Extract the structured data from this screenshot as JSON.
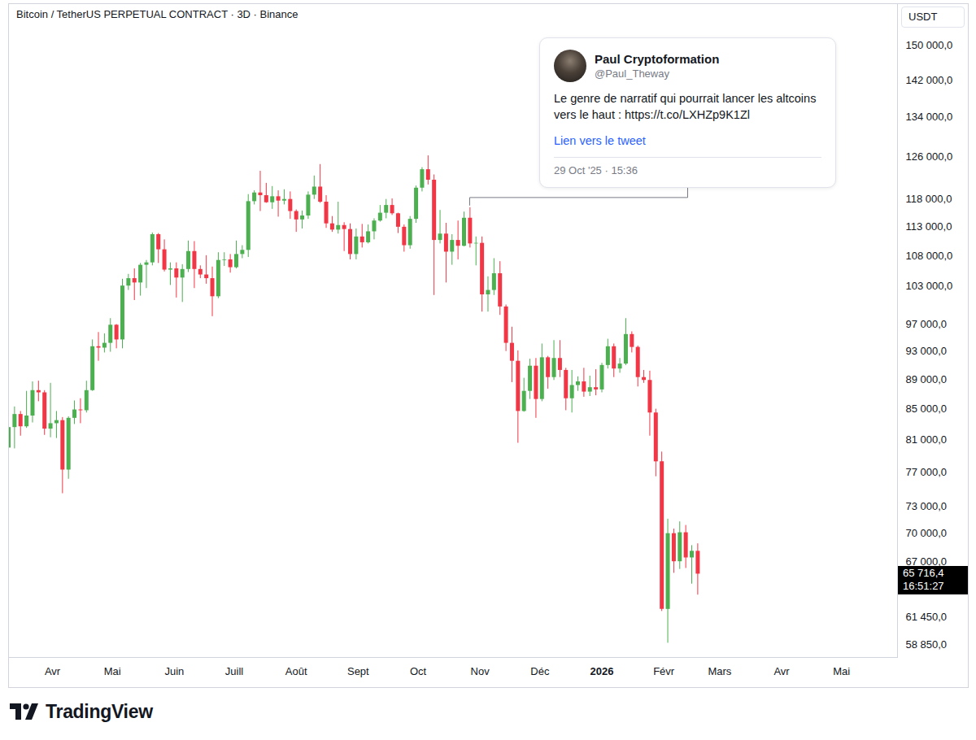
{
  "chart_data": {
    "type": "candlestick",
    "title": "Bitcoin / TetherUS PERPETUAL CONTRACT · 3D · Binance",
    "ylabel": "USDT",
    "log": "y",
    "grid": false,
    "x": [
      "2025-03-10",
      "2025-03-13",
      "2025-03-16",
      "2025-03-19",
      "2025-03-22",
      "2025-03-25",
      "2025-03-28",
      "2025-03-31",
      "2025-04-03",
      "2025-04-06",
      "2025-04-09",
      "2025-04-12",
      "2025-04-15",
      "2025-04-18",
      "2025-04-21",
      "2025-04-24",
      "2025-04-27",
      "2025-04-30",
      "2025-05-03",
      "2025-05-06",
      "2025-05-09",
      "2025-05-12",
      "2025-05-15",
      "2025-05-18",
      "2025-05-21",
      "2025-05-24",
      "2025-05-27",
      "2025-05-30",
      "2025-06-02",
      "2025-06-05",
      "2025-06-08",
      "2025-06-11",
      "2025-06-14",
      "2025-06-17",
      "2025-06-20",
      "2025-06-23",
      "2025-06-26",
      "2025-06-29",
      "2025-07-02",
      "2025-07-05",
      "2025-07-08",
      "2025-07-11",
      "2025-07-14",
      "2025-07-17",
      "2025-07-20",
      "2025-07-23",
      "2025-07-26",
      "2025-07-29",
      "2025-08-01",
      "2025-08-04",
      "2025-08-07",
      "2025-08-10",
      "2025-08-13",
      "2025-08-16",
      "2025-08-19",
      "2025-08-22",
      "2025-08-25",
      "2025-08-28",
      "2025-08-31",
      "2025-09-03",
      "2025-09-06",
      "2025-09-09",
      "2025-09-12",
      "2025-09-15",
      "2025-09-18",
      "2025-09-21",
      "2025-09-24",
      "2025-09-27",
      "2025-09-30",
      "2025-10-03",
      "2025-10-06",
      "2025-10-09",
      "2025-10-12",
      "2025-10-15",
      "2025-10-18",
      "2025-10-21",
      "2025-10-24",
      "2025-10-27",
      "2025-10-30",
      "2025-11-02",
      "2025-11-05",
      "2025-11-08",
      "2025-11-11",
      "2025-11-14",
      "2025-11-17",
      "2025-11-20",
      "2025-11-23",
      "2025-11-26",
      "2025-11-29",
      "2025-12-02",
      "2025-12-05",
      "2025-12-08",
      "2025-12-11",
      "2025-12-14",
      "2025-12-17",
      "2025-12-20",
      "2025-12-23",
      "2025-12-26",
      "2025-12-29",
      "2026-01-01",
      "2026-01-04",
      "2026-01-07",
      "2026-01-10",
      "2026-01-13",
      "2026-01-16",
      "2026-01-19",
      "2026-01-22",
      "2026-01-25",
      "2026-01-28",
      "2026-01-31",
      "2026-02-03",
      "2026-02-06",
      "2026-02-09",
      "2026-02-12",
      "2026-02-15",
      "2026-02-18"
    ],
    "open": [
      80000,
      82600,
      84300,
      82700,
      84100,
      87500,
      87200,
      82400,
      83100,
      83500,
      77300,
      83800,
      84900,
      84800,
      87500,
      93700,
      93500,
      94200,
      96900,
      94700,
      103000,
      104200,
      103500,
      106400,
      106800,
      111600,
      109000,
      105600,
      105800,
      104300,
      105700,
      108700,
      105700,
      104800,
      104200,
      101300,
      107200,
      107300,
      106000,
      108200,
      108900,
      117500,
      119100,
      118600,
      117300,
      118400,
      117600,
      117900,
      115700,
      114200,
      114900,
      118700,
      120200,
      117400,
      113500,
      112400,
      113200,
      112500,
      108200,
      111200,
      110200,
      112100,
      114000,
      115400,
      116800,
      115300,
      112900,
      109700,
      114300,
      120000,
      123500,
      121500,
      110600,
      111700,
      108600,
      110600,
      109600,
      114500,
      110000,
      110100,
      101600,
      102300,
      105000,
      99700,
      94200,
      91600,
      84700,
      87400,
      90900,
      86300,
      92100,
      89300,
      92000,
      90300,
      86400,
      88200,
      88700,
      87300,
      87900,
      87600,
      91000,
      93700,
      90500,
      91200,
      95500,
      93600,
      89300,
      88900,
      84500,
      78300,
      62200,
      70000,
      67000,
      70100,
      67400,
      68100
    ],
    "high": [
      84000,
      85300,
      84700,
      87400,
      88700,
      88800,
      87500,
      88500,
      84700,
      83900,
      84000,
      86100,
      86400,
      88800,
      94700,
      95800,
      95600,
      97900,
      97000,
      104100,
      104900,
      105800,
      106700,
      107200,
      111900,
      111800,
      110700,
      106800,
      106800,
      106500,
      110500,
      110400,
      106300,
      108000,
      106100,
      108500,
      108500,
      108200,
      110500,
      109700,
      118800,
      119500,
      123200,
      120900,
      120300,
      119500,
      119700,
      119300,
      116000,
      115800,
      119300,
      122300,
      124500,
      118600,
      114800,
      117400,
      113700,
      113500,
      112600,
      113400,
      113300,
      114400,
      116800,
      117900,
      118000,
      115400,
      113300,
      114800,
      120400,
      123900,
      126200,
      122500,
      115900,
      113600,
      111600,
      114000,
      115600,
      116400,
      111200,
      111200,
      104500,
      107500,
      107000,
      100000,
      96600,
      93100,
      89200,
      91900,
      92000,
      94100,
      92300,
      94600,
      94600,
      90600,
      90300,
      89400,
      90600,
      89500,
      90400,
      91300,
      94800,
      94100,
      92000,
      97900,
      95900,
      93800,
      90300,
      90200,
      85000,
      79500,
      71600,
      70500,
      71300,
      70900,
      68700,
      68900
    ],
    "low": [
      76600,
      79900,
      81500,
      82500,
      83200,
      86000,
      81600,
      81300,
      81200,
      74500,
      76200,
      83000,
      83100,
      84500,
      87400,
      91600,
      92800,
      92900,
      93400,
      93400,
      102300,
      100700,
      101400,
      102600,
      106300,
      106700,
      105300,
      103100,
      101100,
      100400,
      105200,
      102600,
      104200,
      103300,
      98200,
      101000,
      106200,
      105100,
      105800,
      107500,
      107700,
      116900,
      115700,
      117200,
      116100,
      114700,
      116900,
      114300,
      112000,
      112600,
      114300,
      117900,
      117200,
      112700,
      112000,
      111700,
      108700,
      107300,
      107300,
      109300,
      110000,
      110700,
      113800,
      114400,
      115000,
      111800,
      108600,
      109100,
      113600,
      119300,
      120600,
      101500,
      110000,
      103500,
      106400,
      107300,
      109500,
      109300,
      106300,
      98900,
      98900,
      101500,
      98400,
      93000,
      88600,
      80600,
      84600,
      86300,
      83800,
      86000,
      87700,
      88900,
      89300,
      84800,
      84500,
      87400,
      86600,
      86700,
      86800,
      87200,
      90500,
      89300,
      89900,
      91000,
      92800,
      88000,
      88500,
      81500,
      76500,
      62000,
      59000,
      65800,
      66200,
      66300,
      64700,
      63600
    ],
    "close": [
      82600,
      84300,
      82700,
      84100,
      87500,
      87200,
      82400,
      83100,
      83500,
      77300,
      83800,
      84900,
      84800,
      87500,
      93700,
      93500,
      94200,
      96900,
      94700,
      103000,
      104200,
      103500,
      106400,
      106800,
      111600,
      109000,
      105600,
      105800,
      104300,
      105700,
      108700,
      105700,
      104800,
      104200,
      101300,
      107200,
      107300,
      106000,
      108200,
      108900,
      117500,
      119100,
      118600,
      117300,
      118400,
      117600,
      117900,
      115700,
      114200,
      114900,
      118700,
      120200,
      117400,
      113500,
      112400,
      113200,
      112500,
      108200,
      111200,
      110200,
      112100,
      114000,
      115400,
      116800,
      115300,
      112900,
      109700,
      114300,
      120000,
      123500,
      121500,
      110600,
      111700,
      108600,
      110600,
      109600,
      114500,
      110000,
      110100,
      101600,
      102300,
      105000,
      99700,
      94200,
      91600,
      84700,
      87400,
      90900,
      86300,
      92100,
      89300,
      92000,
      90300,
      86400,
      88200,
      88700,
      87300,
      87900,
      87600,
      91000,
      93700,
      90500,
      91200,
      95500,
      93600,
      89300,
      88900,
      84500,
      78300,
      62200,
      70000,
      67000,
      70100,
      67400,
      68100,
      65716.4
    ],
    "colors": [
      "#4caf50",
      "#4caf50",
      "#f23645",
      "#4caf50",
      "#4caf50",
      "#f23645",
      "#f23645",
      "#4caf50",
      "#4caf50",
      "#f23645",
      "#4caf50",
      "#4caf50",
      "#f23645",
      "#4caf50",
      "#4caf50",
      "#f23645",
      "#4caf50",
      "#4caf50",
      "#f23645",
      "#4caf50",
      "#4caf50",
      "#f23645",
      "#4caf50",
      "#4caf50",
      "#4caf50",
      "#f23645",
      "#f23645",
      "#4caf50",
      "#f23645",
      "#4caf50",
      "#4caf50",
      "#f23645",
      "#f23645",
      "#f23645",
      "#f23645",
      "#4caf50",
      "#4caf50",
      "#f23645",
      "#4caf50",
      "#4caf50",
      "#4caf50",
      "#4caf50",
      "#f23645",
      "#f23645",
      "#4caf50",
      "#f23645",
      "#4caf50",
      "#f23645",
      "#f23645",
      "#4caf50",
      "#4caf50",
      "#4caf50",
      "#f23645",
      "#f23645",
      "#f23645",
      "#4caf50",
      "#f23645",
      "#f23645",
      "#4caf50",
      "#f23645",
      "#4caf50",
      "#4caf50",
      "#4caf50",
      "#4caf50",
      "#f23645",
      "#f23645",
      "#f23645",
      "#4caf50",
      "#4caf50",
      "#4caf50",
      "#f23645",
      "#f23645",
      "#4caf50",
      "#f23645",
      "#4caf50",
      "#f23645",
      "#4caf50",
      "#f23645",
      "#4caf50",
      "#f23645",
      "#4caf50",
      "#4caf50",
      "#f23645",
      "#f23645",
      "#f23645",
      "#f23645",
      "#4caf50",
      "#4caf50",
      "#f23645",
      "#4caf50",
      "#f23645",
      "#4caf50",
      "#f23645",
      "#f23645",
      "#4caf50",
      "#4caf50",
      "#f23645",
      "#4caf50",
      "#f23645",
      "#4caf50",
      "#4caf50",
      "#f23645",
      "#4caf50",
      "#4caf50",
      "#f23645",
      "#f23645",
      "#f23645",
      "#f23645",
      "#f23645",
      "#f23645",
      "#4caf50",
      "#f23645",
      "#4caf50",
      "#f23645",
      "#4caf50",
      "#f23645"
    ],
    "xlim": [
      "2025-03-10",
      "2026-05-29"
    ],
    "xticks": [
      {
        "value": "2025-04-01",
        "label": "Avr"
      },
      {
        "value": "2025-05-01",
        "label": "Mai"
      },
      {
        "value": "2025-06-01",
        "label": "Juin"
      },
      {
        "value": "2025-07-01",
        "label": "Juill"
      },
      {
        "value": "2025-08-01",
        "label": "Août"
      },
      {
        "value": "2025-09-01",
        "label": "Sept"
      },
      {
        "value": "2025-10-01",
        "label": "Oct"
      },
      {
        "value": "2025-11-01",
        "label": "Nov"
      },
      {
        "value": "2025-12-01",
        "label": "Déc"
      },
      {
        "value": "2026-01-01",
        "label": "2026"
      },
      {
        "value": "2026-02-01",
        "label": "Févr"
      },
      {
        "value": "2026-03-01",
        "label": "Mars"
      },
      {
        "value": "2026-04-01",
        "label": "Avr"
      },
      {
        "value": "2026-05-01",
        "label": "Mai"
      }
    ],
    "ylim": [
      57700,
      160000
    ],
    "yticks": [
      {
        "value": 150000,
        "label": "150 000,0"
      },
      {
        "value": 142000,
        "label": "142 000,0"
      },
      {
        "value": 134000,
        "label": "134 000,0"
      },
      {
        "value": 126000,
        "label": "126 000,0"
      },
      {
        "value": 118000,
        "label": "118 000,0"
      },
      {
        "value": 113000,
        "label": "113 000,0"
      },
      {
        "value": 108000,
        "label": "108 000,0"
      },
      {
        "value": 103000,
        "label": "103 000,0"
      },
      {
        "value": 97000,
        "label": "97 000,0"
      },
      {
        "value": 93000,
        "label": "93 000,0"
      },
      {
        "value": 89000,
        "label": "89 000,0"
      },
      {
        "value": 85000,
        "label": "85 000,0"
      },
      {
        "value": 81000,
        "label": "81 000,0"
      },
      {
        "value": 77000,
        "label": "77 000,0"
      },
      {
        "value": 73000,
        "label": "73 000,0"
      },
      {
        "value": 70000,
        "label": "70 000,0"
      },
      {
        "value": 67000,
        "label": "67 000,0"
      },
      {
        "value": 61450,
        "label": "61 450,0"
      },
      {
        "value": 58850,
        "label": "58 850,0"
      }
    ],
    "last_price": {
      "value": 65716.4,
      "label": "65 716,4",
      "countdown": "16:51:27"
    },
    "annotation": {
      "author": "Paul Cryptoformation",
      "handle": "@Paul_Theway",
      "text": "Le genre de narratif qui pourrait lancer les altcoins vers le haut : https://t.co/LXHZp9K1Zl",
      "link": "Lien vers le tweet",
      "timestamp": "29 Oct '25 · 15:36",
      "x": "2025-10-29T15:36"
    },
    "watermark": "TradingView"
  }
}
